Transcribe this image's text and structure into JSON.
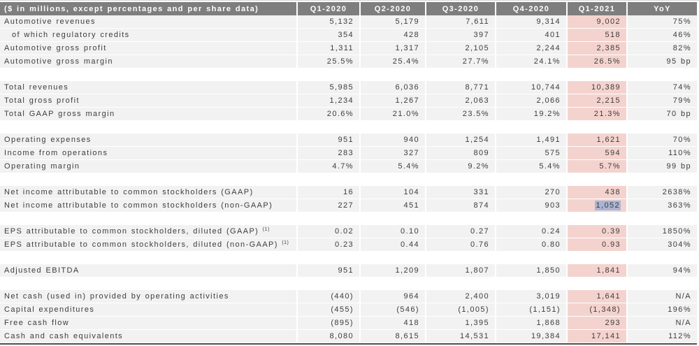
{
  "table": {
    "unit_label": "($ in millions, except percentages and per share data)",
    "columns": [
      "Q1-2020",
      "Q2-2020",
      "Q3-2020",
      "Q4-2020",
      "Q1-2021",
      "YoY"
    ],
    "highlighted_column": "Q1-2021",
    "colors": {
      "header_bg": "#7e7e7e",
      "header_text": "#ffffff",
      "row_bg": "#f2f2f2",
      "highlight_col_bg": "#f4d3ce",
      "selection_bg": "#aab5d5",
      "text_color": "#3c3c3c",
      "bottom_border": "#4f4f4f"
    },
    "selection": {
      "row": "Net income attributable to common stockholders (non-GAAP)",
      "column": "Q1-2021",
      "value": "1,052"
    },
    "sections": [
      {
        "rows": [
          {
            "label": "Automotive revenues",
            "values": [
              "5,132",
              "5,179",
              "7,611",
              "9,314",
              "9,002"
            ],
            "yoy": "75%"
          },
          {
            "label": "of which regulatory credits",
            "indent": true,
            "values": [
              "354",
              "428",
              "397",
              "401",
              "518"
            ],
            "yoy": "46%"
          },
          {
            "label": "Automotive gross profit",
            "values": [
              "1,311",
              "1,317",
              "2,105",
              "2,244",
              "2,385"
            ],
            "yoy": "82%"
          },
          {
            "label": "Automotive gross margin",
            "values": [
              "25.5%",
              "25.4%",
              "27.7%",
              "24.1%",
              "26.5%"
            ],
            "yoy": "95 bp"
          }
        ]
      },
      {
        "rows": [
          {
            "label": "Total revenues",
            "values": [
              "5,985",
              "6,036",
              "8,771",
              "10,744",
              "10,389"
            ],
            "yoy": "74%"
          },
          {
            "label": "Total gross profit",
            "values": [
              "1,234",
              "1,267",
              "2,063",
              "2,066",
              "2,215"
            ],
            "yoy": "79%"
          },
          {
            "label": "Total GAAP gross margin",
            "values": [
              "20.6%",
              "21.0%",
              "23.5%",
              "19.2%",
              "21.3%"
            ],
            "yoy": "70 bp"
          }
        ]
      },
      {
        "rows": [
          {
            "label": "Operating expenses",
            "values": [
              "951",
              "940",
              "1,254",
              "1,491",
              "1,621"
            ],
            "yoy": "70%"
          },
          {
            "label": "Income from operations",
            "values": [
              "283",
              "327",
              "809",
              "575",
              "594"
            ],
            "yoy": "110%"
          },
          {
            "label": "Operating margin",
            "values": [
              "4.7%",
              "5.4%",
              "9.2%",
              "5.4%",
              "5.7%"
            ],
            "yoy": "99 bp"
          }
        ]
      },
      {
        "rows": [
          {
            "label": "Net income attributable to common stockholders (GAAP)",
            "values": [
              "16",
              "104",
              "331",
              "270",
              "438"
            ],
            "yoy": "2638%"
          },
          {
            "label": "Net income attributable to common stockholders (non-GAAP)",
            "values": [
              "227",
              "451",
              "874",
              "903",
              "1,052"
            ],
            "yoy": "363%",
            "selected_value_index": 4
          }
        ]
      },
      {
        "rows": [
          {
            "label": "EPS attributable to common stockholders, diluted (GAAP)",
            "footnote": "(1)",
            "values": [
              "0.02",
              "0.10",
              "0.27",
              "0.24",
              "0.39"
            ],
            "yoy": "1850%"
          },
          {
            "label": "EPS attributable to common stockholders, diluted (non-GAAP)",
            "footnote": "(1)",
            "values": [
              "0.23",
              "0.44",
              "0.76",
              "0.80",
              "0.93"
            ],
            "yoy": "304%"
          }
        ]
      },
      {
        "rows": [
          {
            "label": "Adjusted EBITDA",
            "values": [
              "951",
              "1,209",
              "1,807",
              "1,850",
              "1,841"
            ],
            "yoy": "94%"
          }
        ]
      },
      {
        "rows": [
          {
            "label": "Net cash (used in) provided by operating activities",
            "values": [
              "(440)",
              "964",
              "2,400",
              "3,019",
              "1,641"
            ],
            "yoy": "N/A"
          },
          {
            "label": "Capital expenditures",
            "values": [
              "(455)",
              "(546)",
              "(1,005)",
              "(1,151)",
              "(1,348)"
            ],
            "yoy": "196%"
          },
          {
            "label": "Free cash flow",
            "values": [
              "(895)",
              "418",
              "1,395",
              "1,868",
              "293"
            ],
            "yoy": "N/A"
          },
          {
            "label": "Cash and cash equivalents",
            "values": [
              "8,080",
              "8,615",
              "14,531",
              "19,384",
              "17,141"
            ],
            "yoy": "112%"
          }
        ]
      }
    ]
  }
}
